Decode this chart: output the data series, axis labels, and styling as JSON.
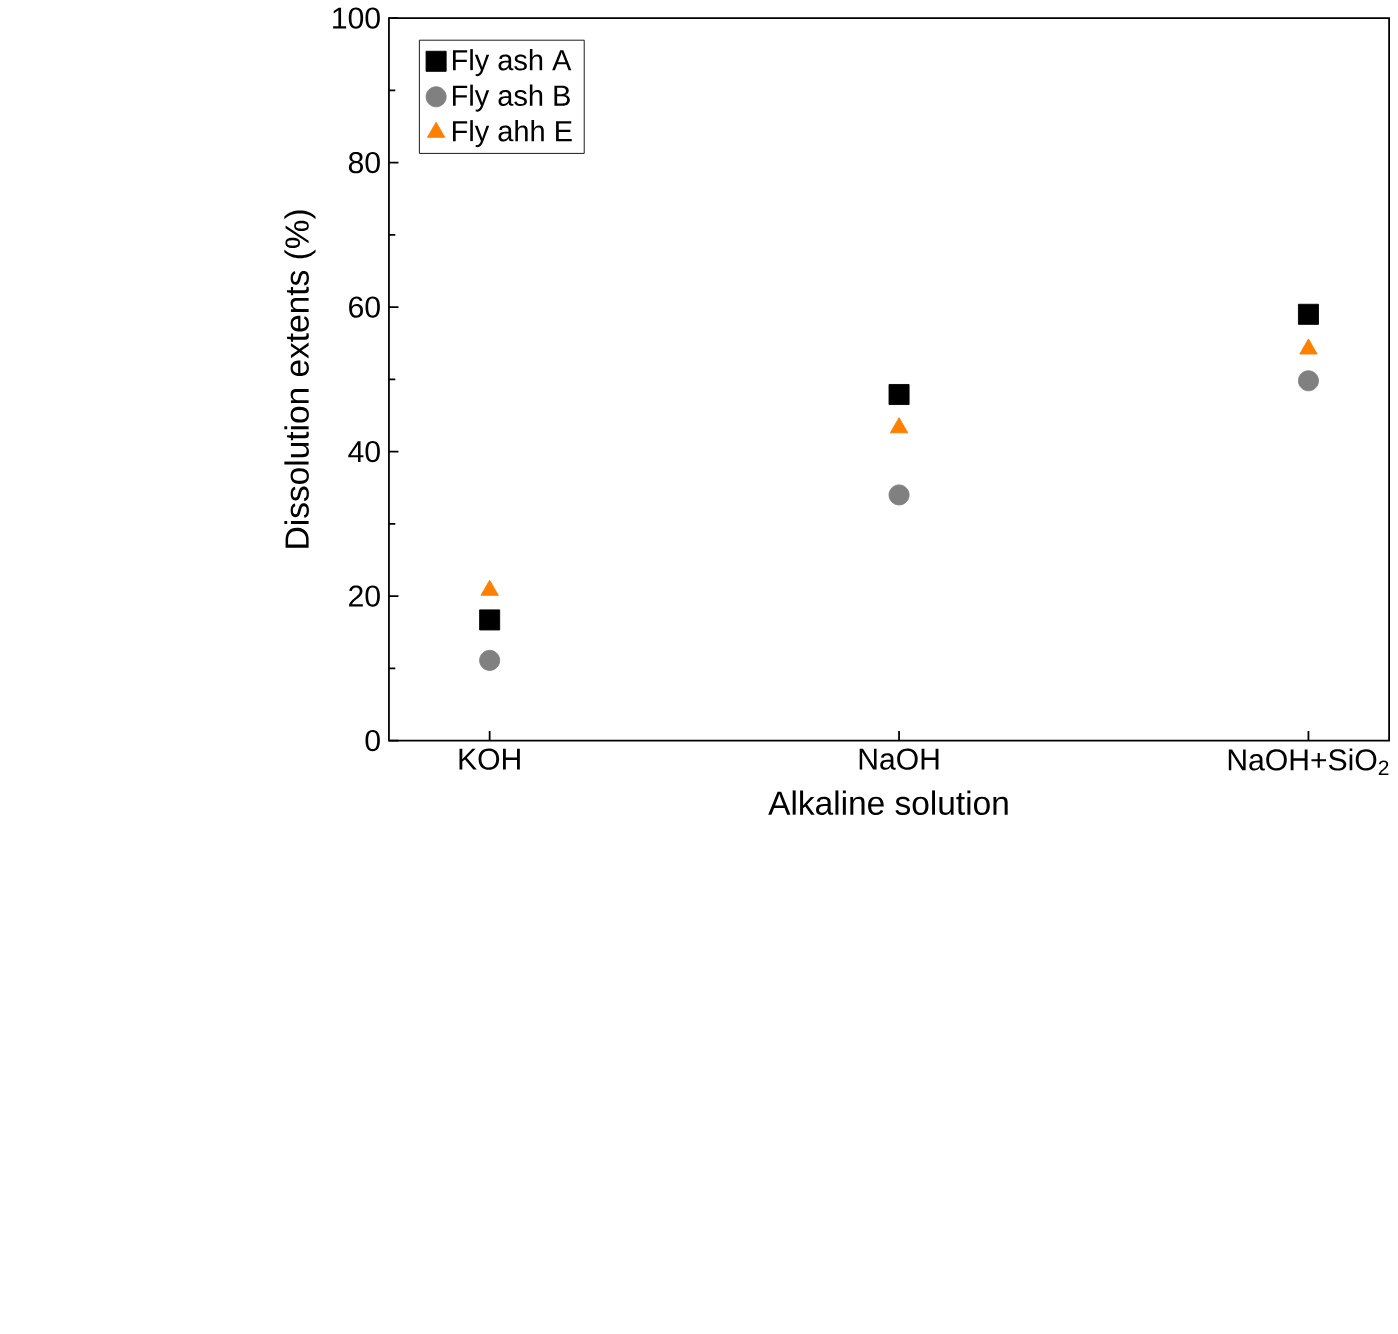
{
  "chart_data": {
    "type": "scatter",
    "xlabel": "Alkaline solution",
    "ylabel": "Dissolution extents (%)",
    "categories": [
      "KOH",
      "NaOH",
      "NaOH+SiO$_{2}$"
    ],
    "ylim": [
      0,
      100
    ],
    "yticks": [
      0,
      20,
      40,
      60,
      80,
      100
    ],
    "grid": false,
    "legend": "top left",
    "series": [
      {
        "name": "Fly ash A",
        "color": "#000000",
        "marker": "square",
        "values": [
          16.7,
          47.9,
          59.0
        ]
      },
      {
        "name": "Fly ash B",
        "color": "#808080",
        "marker": "circle",
        "values": [
          11.1,
          34.0,
          49.8
        ]
      },
      {
        "name": "Fly ahh E",
        "color": "#ff7f00",
        "marker": "triangle",
        "values": [
          20.8,
          43.3,
          54.2
        ]
      }
    ]
  }
}
